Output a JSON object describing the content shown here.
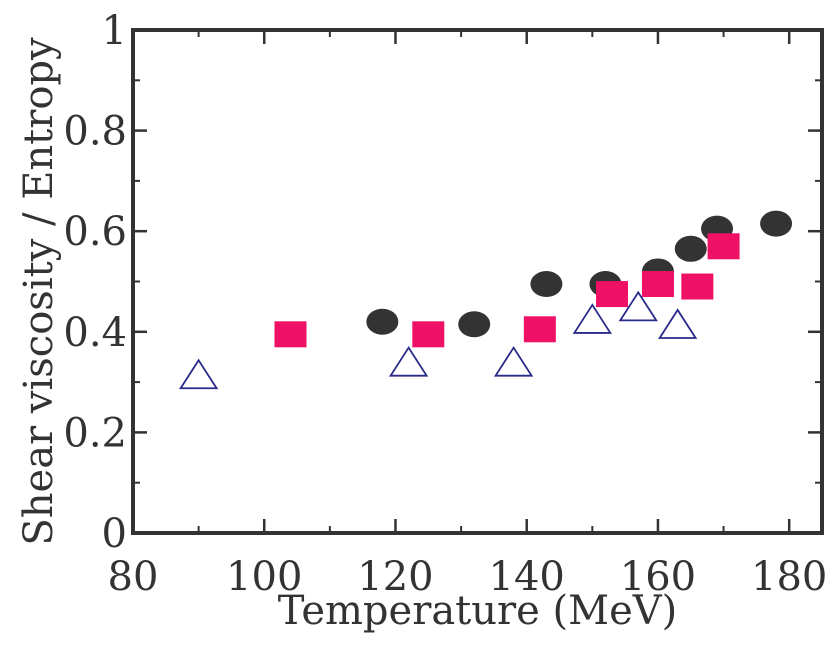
{
  "chart_data": {
    "type": "scatter",
    "title": "",
    "xlabel": "Temperature (MeV)",
    "ylabel": "Shear viscosity / Entropy",
    "xlim": [
      80,
      185
    ],
    "ylim": [
      0,
      1
    ],
    "xticks": [
      80,
      100,
      120,
      140,
      160,
      180
    ],
    "xtick_labels": [
      "80",
      "100",
      "120",
      "140",
      "160",
      "180"
    ],
    "yticks": [
      0,
      0.2,
      0.4,
      0.6,
      0.8,
      1
    ],
    "ytick_labels": [
      "0",
      "0.2",
      "0.4",
      "0.6",
      "0.8",
      "1"
    ],
    "grid": false,
    "legend": "none",
    "series": [
      {
        "marker": "circle",
        "color": "#333333",
        "points": [
          [
            118,
            0.42
          ],
          [
            132,
            0.415
          ],
          [
            143,
            0.495
          ],
          [
            152,
            0.495
          ],
          [
            160,
            0.52
          ],
          [
            165,
            0.565
          ],
          [
            169,
            0.605
          ],
          [
            178,
            0.615
          ]
        ]
      },
      {
        "marker": "square",
        "color": "#ee1166",
        "points": [
          [
            104,
            0.395
          ],
          [
            125,
            0.395
          ],
          [
            142,
            0.405
          ],
          [
            153,
            0.475
          ],
          [
            160,
            0.495
          ],
          [
            166,
            0.49
          ],
          [
            170,
            0.57
          ]
        ]
      },
      {
        "marker": "open-triangle",
        "color": "#2a2a8a",
        "points": [
          [
            90,
            0.31
          ],
          [
            122,
            0.335
          ],
          [
            138,
            0.335
          ],
          [
            150,
            0.42
          ],
          [
            157,
            0.445
          ],
          [
            163,
            0.41
          ]
        ]
      }
    ]
  }
}
